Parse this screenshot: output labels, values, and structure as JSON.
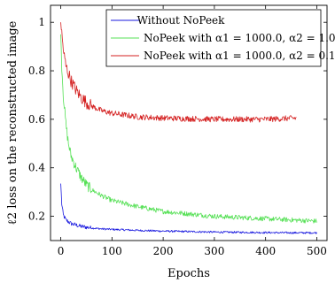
{
  "chart_data": {
    "type": "line",
    "xlabel": "Epochs",
    "ylabel": "ℓ2 loss on the reconstructed image",
    "xlim": [
      -20,
      520
    ],
    "ylim": [
      0.1,
      1.07
    ],
    "xticks": [
      0,
      100,
      200,
      300,
      400,
      500
    ],
    "yticks": [
      0.2,
      0.4,
      0.6,
      0.8,
      1
    ],
    "grid": false,
    "legend_position": "top-right",
    "series": [
      {
        "name": "Without NoPeek",
        "color": "#1a1adf",
        "noise": 0.004,
        "points": [
          [
            0,
            0.335
          ],
          [
            2,
            0.25
          ],
          [
            5,
            0.205
          ],
          [
            10,
            0.185
          ],
          [
            20,
            0.17
          ],
          [
            40,
            0.158
          ],
          [
            60,
            0.152
          ],
          [
            80,
            0.148
          ],
          [
            100,
            0.146
          ],
          [
            150,
            0.142
          ],
          [
            200,
            0.139
          ],
          [
            250,
            0.137
          ],
          [
            300,
            0.135
          ],
          [
            350,
            0.134
          ],
          [
            400,
            0.133
          ],
          [
            450,
            0.132
          ],
          [
            500,
            0.132
          ]
        ]
      },
      {
        "name": "NoPeek with α1 = 1000.0, α2 = 1.0",
        "color": "#55e055",
        "noise": 0.01,
        "points": [
          [
            0,
            0.95
          ],
          [
            2,
            0.82
          ],
          [
            5,
            0.7
          ],
          [
            10,
            0.58
          ],
          [
            15,
            0.5
          ],
          [
            20,
            0.45
          ],
          [
            30,
            0.4
          ],
          [
            40,
            0.36
          ],
          [
            50,
            0.33
          ],
          [
            60,
            0.31
          ],
          [
            80,
            0.285
          ],
          [
            100,
            0.265
          ],
          [
            150,
            0.24
          ],
          [
            200,
            0.22
          ],
          [
            250,
            0.21
          ],
          [
            300,
            0.2
          ],
          [
            350,
            0.195
          ],
          [
            400,
            0.19
          ],
          [
            450,
            0.185
          ],
          [
            500,
            0.18
          ]
        ]
      },
      {
        "name": "NoPeek with α1 = 1000.0, α2 = 0.1",
        "color": "#d42020",
        "noise": 0.012,
        "points": [
          [
            0,
            1.0
          ],
          [
            3,
            0.93
          ],
          [
            6,
            0.87
          ],
          [
            10,
            0.82
          ],
          [
            20,
            0.76
          ],
          [
            30,
            0.72
          ],
          [
            40,
            0.69
          ],
          [
            50,
            0.67
          ],
          [
            60,
            0.655
          ],
          [
            80,
            0.635
          ],
          [
            100,
            0.625
          ],
          [
            150,
            0.61
          ],
          [
            200,
            0.605
          ],
          [
            300,
            0.6
          ],
          [
            400,
            0.6
          ],
          [
            460,
            0.605
          ]
        ]
      }
    ]
  }
}
